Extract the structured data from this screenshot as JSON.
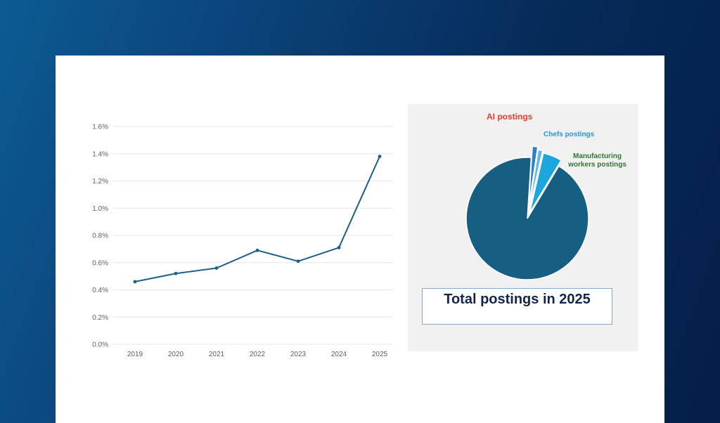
{
  "chart_data": [
    {
      "type": "line",
      "x": [
        "2019",
        "2020",
        "2021",
        "2022",
        "2023",
        "2024",
        "2025"
      ],
      "series": [
        {
          "values": [
            0.46,
            0.52,
            0.56,
            0.69,
            0.61,
            0.71,
            1.38
          ]
        }
      ],
      "y_ticks": [
        "0.0%",
        "0.2%",
        "0.4%",
        "0.6%",
        "0.8%",
        "1.0%",
        "1.2%",
        "1.4%",
        "1.6%"
      ],
      "ylim": [
        0,
        1.6
      ],
      "grid": true,
      "line_color": "#1e5f86"
    },
    {
      "type": "pie",
      "title": "Total postings in 2025",
      "slices": [
        {
          "label": "AI postings",
          "value": 1.4,
          "color": "#2a7fd0",
          "label_color": "#e53a2c"
        },
        {
          "label": "Chefs postings",
          "value": 1.2,
          "color": "#5cb8ea",
          "label_color": "#1b9ad8"
        },
        {
          "label": "Manufacturing workers postings",
          "value": 5.0,
          "color": "#1ca6dc",
          "label_color": "#2a7a2a"
        },
        {
          "label": "",
          "value": 92.4,
          "color": "#175e83"
        }
      ]
    }
  ]
}
